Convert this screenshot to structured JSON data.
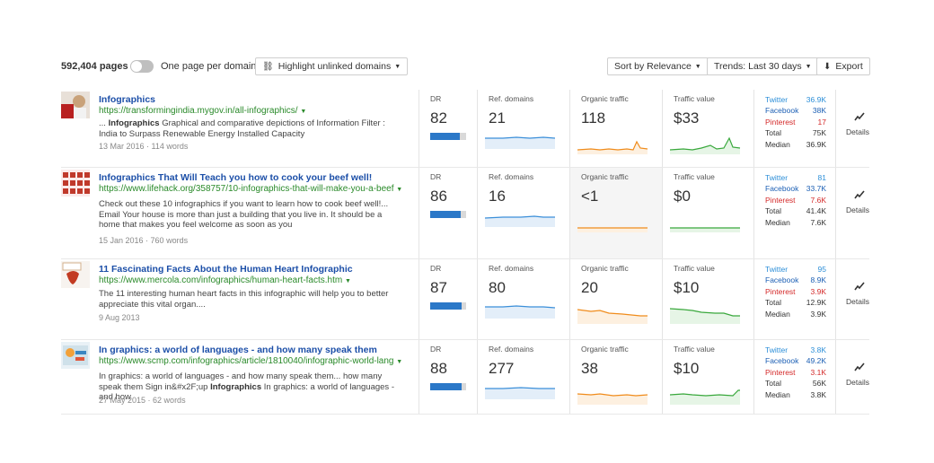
{
  "toolbar": {
    "pages_count": "592,404 pages",
    "one_page_toggle_label": "One page per domain",
    "highlight_label": "Highlight unlinked domains",
    "sort_label": "Sort by Relevance",
    "trends_label": "Trends: Last 30 days",
    "export_label": "Export"
  },
  "column_labels": {
    "dr": "DR",
    "ref_domains": "Ref. domains",
    "organic_traffic": "Organic traffic",
    "traffic_value": "Traffic value",
    "details": "Details"
  },
  "social_labels": {
    "twitter": "Twitter",
    "facebook": "Facebook",
    "pinterest": "Pinterest",
    "total": "Total",
    "median": "Median"
  },
  "colors": {
    "link": "#1c4fa8",
    "url": "#2a8a2a",
    "twitter": "#2d8fd8",
    "facebook": "#1c5fb4",
    "pinterest": "#d42a2a",
    "ref_line": "#3b8fd9",
    "organic_line": "#f08c1c",
    "value_line": "#39a83c"
  },
  "results": [
    {
      "title": "Infographics",
      "url": "https://transformingindia.mygov.in/all-infographics/",
      "desc_prefix": "...",
      "desc_bold": "Infographics",
      "desc_text": "Graphical and comparative depictions of Information Filter : India to Surpass Renewable Energy Installed Capacity",
      "date": "13 Mar 2016",
      "words": "114 words",
      "dr": "82",
      "dr_fraction": 0.82,
      "ref_domains": "21",
      "organic_traffic": "118",
      "traffic_value": "$33",
      "twitter": "36.9K",
      "facebook": "38K",
      "pinterest": "17",
      "total": "75K",
      "median": "36.9K"
    },
    {
      "title": "Infographics That Will Teach you how to cook your beef well!",
      "url": "https://www.lifehack.org/358757/10-infographics-that-will-make-you-a-beef",
      "desc_prefix": "",
      "desc_bold": "",
      "desc_text": "Check out these 10 infographics if you want to learn how to cook beef well!... Email Your house is more than just a building that you live in. It should be a home that makes you feel welcome as soon as you",
      "date": "15 Jan 2016",
      "words": "760 words",
      "dr": "86",
      "dr_fraction": 0.86,
      "ref_domains": "16",
      "organic_traffic": "<1",
      "traffic_value": "$0",
      "twitter": "81",
      "facebook": "33.7K",
      "pinterest": "7.6K",
      "total": "41.4K",
      "median": "7.6K"
    },
    {
      "title": "11 Fascinating Facts About the Human Heart Infographic",
      "url": "https://www.mercola.com/infographics/human-heart-facts.htm",
      "desc_prefix": "",
      "desc_bold": "",
      "desc_text": "The 11 interesting human heart facts in this infographic will help you to better appreciate this vital organ....",
      "date": "9 Aug 2013",
      "words": "",
      "dr": "87",
      "dr_fraction": 0.87,
      "ref_domains": "80",
      "organic_traffic": "20",
      "traffic_value": "$10",
      "twitter": "95",
      "facebook": "8.9K",
      "pinterest": "3.9K",
      "total": "12.9K",
      "median": "3.9K"
    },
    {
      "title": "In graphics: a world of languages - and how many speak them",
      "url": "https://www.scmp.com/infographics/article/1810040/infographic-world-lang",
      "desc_prefix": "In graphics: a world of languages - and how many speak them... how many speak them Sign in&#x2F;up",
      "desc_bold": "Infographics",
      "desc_text": "In graphics: a world of languages - and how",
      "date": "27 May 2015",
      "words": "62 words",
      "dr": "88",
      "dr_fraction": 0.88,
      "ref_domains": "277",
      "organic_traffic": "38",
      "traffic_value": "$10",
      "twitter": "3.8K",
      "facebook": "49.2K",
      "pinterest": "3.1K",
      "total": "56K",
      "median": "3.8K"
    }
  ]
}
